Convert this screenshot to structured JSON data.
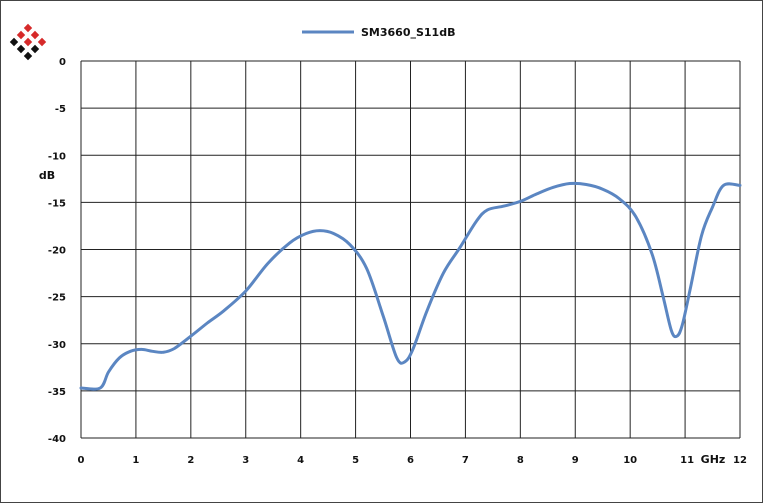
{
  "logo": {
    "name": "red-black-diamond-logo"
  },
  "legend": {
    "position": "top-center"
  },
  "chart_data": {
    "type": "line",
    "title": "",
    "xlabel": "",
    "ylabel": "",
    "x_unit": "GHz",
    "y_unit": "dB",
    "xlim": [
      0,
      12
    ],
    "ylim": [
      -40,
      0
    ],
    "x_ticks": [
      "0",
      "1",
      "2",
      "3",
      "4",
      "5",
      "6",
      "7",
      "8",
      "9",
      "10",
      "11",
      "12"
    ],
    "y_ticks": [
      "0",
      "-5",
      "-10",
      "-15",
      "-20",
      "-25",
      "-30",
      "-35",
      "-40"
    ],
    "grid": true,
    "series": [
      {
        "name": "SM3660_S11dB",
        "color": "#5B86C2",
        "x": [
          0,
          0.35,
          0.5,
          0.7,
          0.9,
          1.1,
          1.3,
          1.5,
          1.7,
          2.0,
          2.3,
          2.6,
          3.0,
          3.4,
          3.8,
          4.1,
          4.35,
          4.6,
          4.9,
          5.2,
          5.5,
          5.75,
          5.9,
          6.05,
          6.3,
          6.6,
          6.9,
          7.2,
          7.4,
          7.7,
          8.0,
          8.3,
          8.6,
          8.9,
          9.2,
          9.5,
          9.8,
          10.1,
          10.4,
          10.6,
          10.75,
          10.85,
          10.95,
          11.1,
          11.3,
          11.5,
          11.7,
          12.0
        ],
        "values": [
          -34.7,
          -34.7,
          -33.0,
          -31.5,
          -30.8,
          -30.6,
          -30.8,
          -30.9,
          -30.5,
          -29.2,
          -27.8,
          -26.5,
          -24.4,
          -21.5,
          -19.3,
          -18.3,
          -18.0,
          -18.3,
          -19.5,
          -22.0,
          -27.0,
          -31.5,
          -31.9,
          -30.5,
          -26.5,
          -22.5,
          -19.8,
          -17.0,
          -15.8,
          -15.4,
          -14.9,
          -14.1,
          -13.4,
          -13.0,
          -13.1,
          -13.6,
          -14.6,
          -16.5,
          -20.5,
          -25.0,
          -28.6,
          -29.2,
          -28.0,
          -24.0,
          -18.5,
          -15.5,
          -13.2,
          -13.2
        ]
      }
    ]
  }
}
